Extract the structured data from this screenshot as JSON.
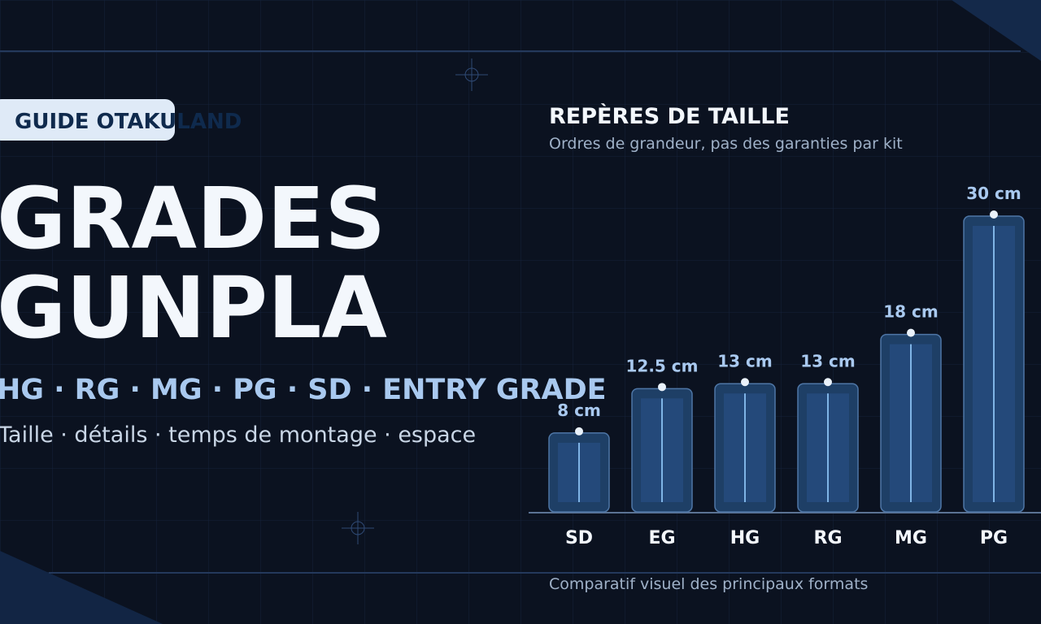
{
  "badge": "GUIDE OTAKULAND",
  "title_lines": [
    "GRADES",
    "GUNPLA"
  ],
  "grades_line": "HG · RG · MG · PG · SD · ENTRY GRADE",
  "tagline": "Taille · détails · temps de montage · espace",
  "chart_data": {
    "type": "bar",
    "title": "REPÈRES DE TAILLE",
    "subtitle": "Ordres de grandeur, pas des garanties par kit",
    "caption": "Comparatif visuel des principaux formats",
    "categories": [
      "SD",
      "EG",
      "HG",
      "RG",
      "MG",
      "PG"
    ],
    "values": [
      8,
      12.5,
      13,
      13,
      18,
      30
    ],
    "value_labels": [
      "8 cm",
      "12.5 cm",
      "13 cm",
      "13 cm",
      "18 cm",
      "30 cm"
    ],
    "color": "#1e3f66"
  }
}
